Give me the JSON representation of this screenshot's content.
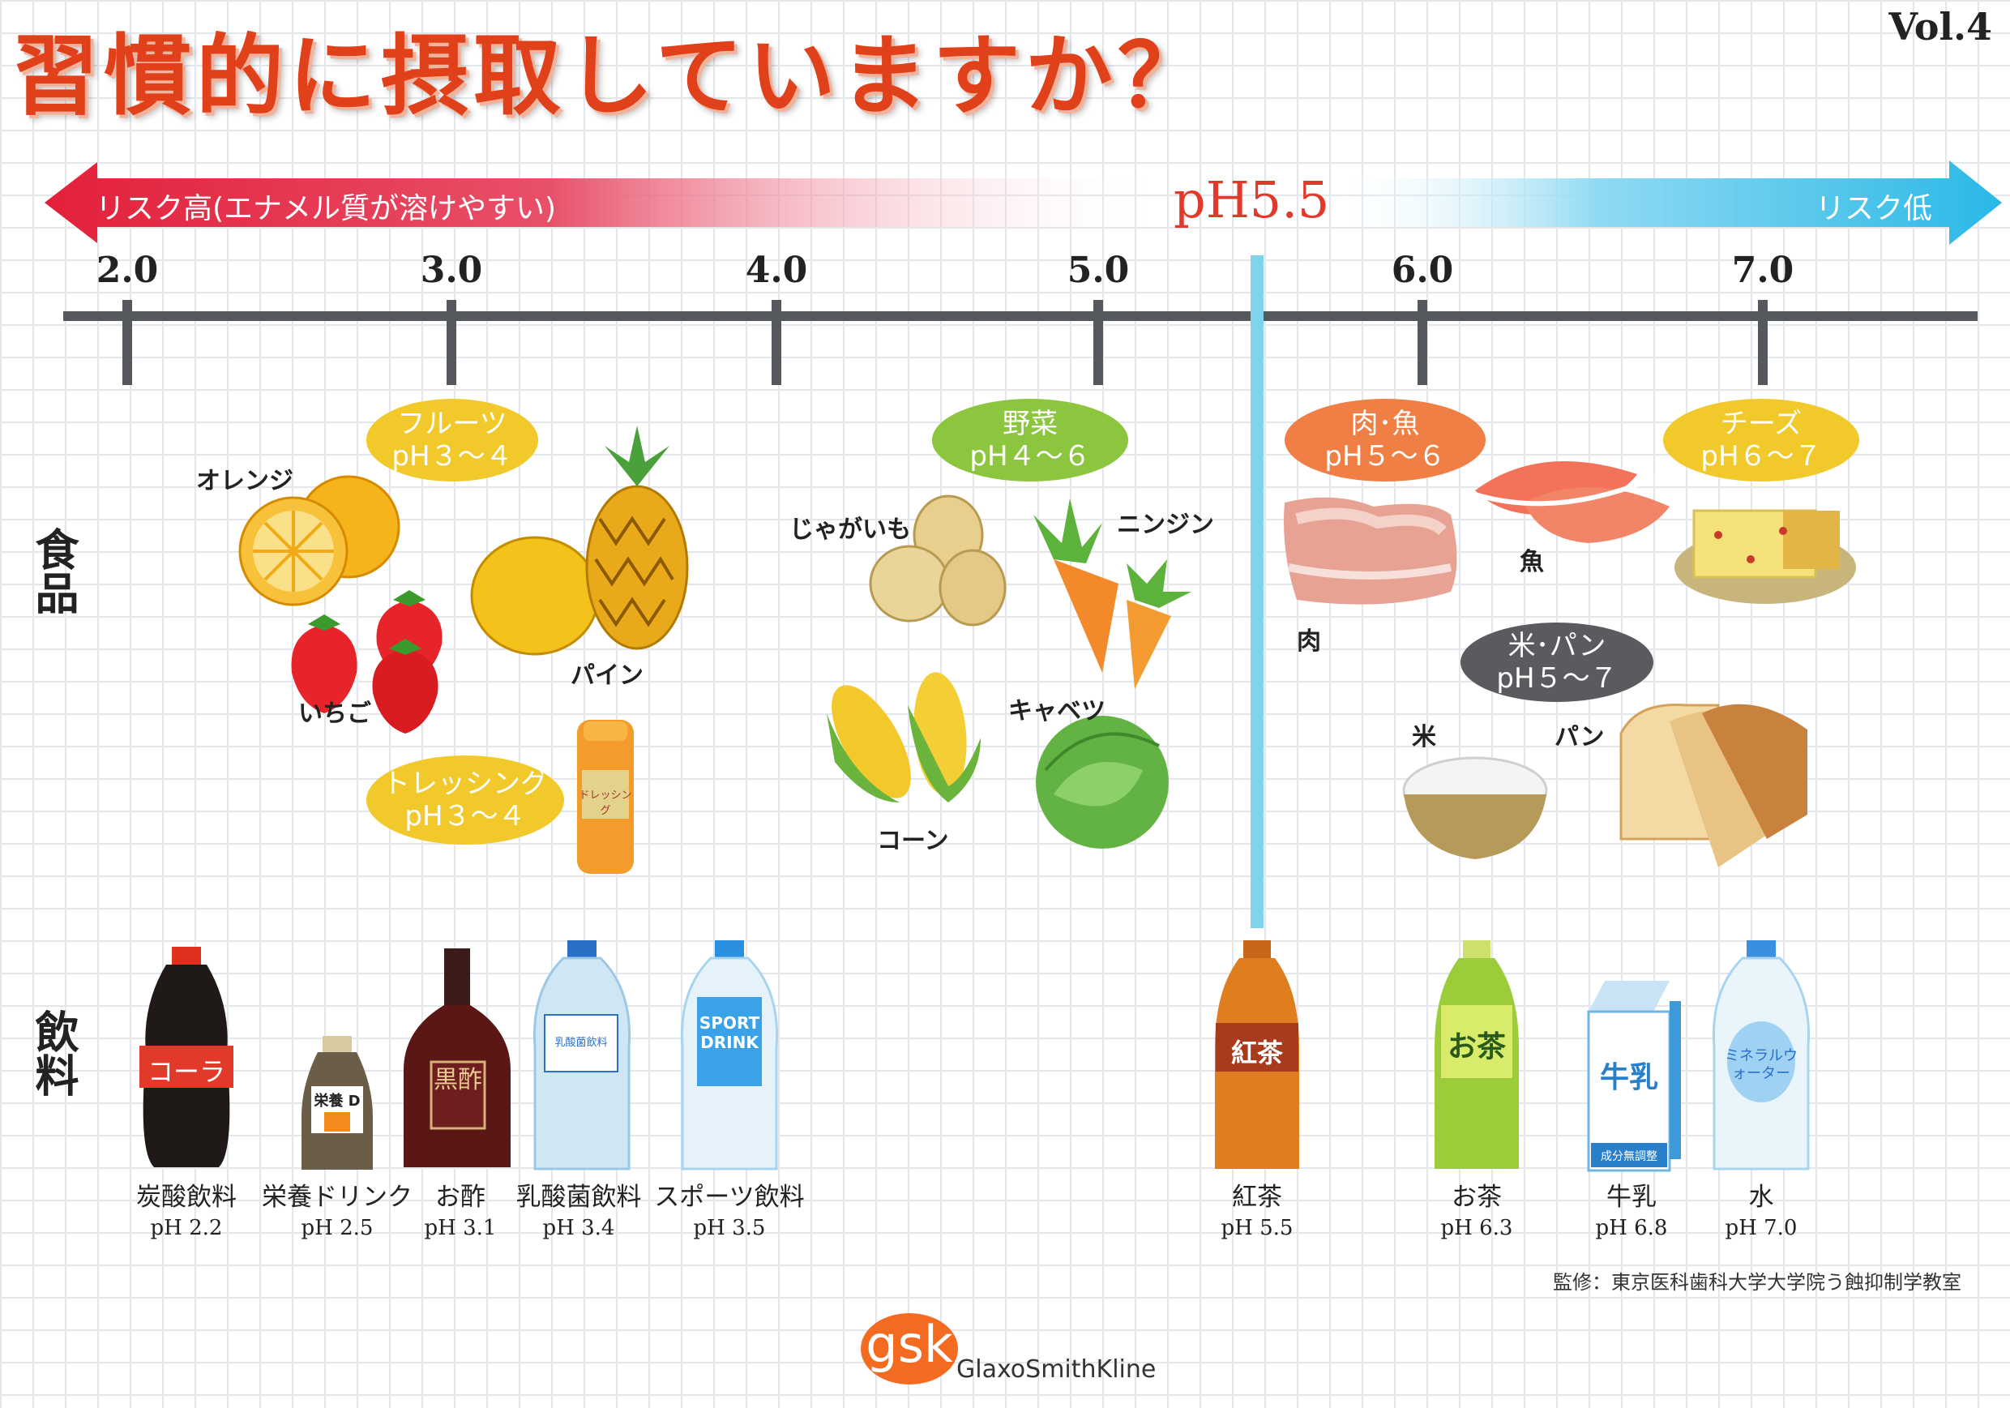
{
  "vol": "Vol.4",
  "title": "習慣的に摂取していますか？",
  "arrow": {
    "left_label": "リスク高(エナメル質が溶けやすい)",
    "center_label": "pH5.5",
    "right_label": "リスク低",
    "left_color": "#e3203a",
    "right_color": "#2ab8e6"
  },
  "scale": {
    "ticks": [
      "2.0",
      "3.0",
      "4.0",
      "5.0",
      "6.0",
      "7.0"
    ],
    "threshold_color": "#7fd3ea"
  },
  "rows": {
    "food": "食品",
    "drink": "飲料"
  },
  "food_groups": [
    {
      "name": "フルーツ",
      "ph": "pH３〜４",
      "color": "#f2c92b"
    },
    {
      "name": "トレッシング",
      "ph": "pH３〜４",
      "color": "#f2c92b"
    },
    {
      "name": "野菜",
      "ph": "pH４〜６",
      "color": "#8cc63f"
    },
    {
      "name": "肉･魚",
      "ph": "pH５〜６",
      "color": "#ef7f45"
    },
    {
      "name": "チーズ",
      "ph": "pH６〜７",
      "color": "#f2c92b"
    },
    {
      "name": "米･パン",
      "ph": "pH５〜７",
      "color": "#595b5e"
    }
  ],
  "food_labels": {
    "orange": "オレンジ",
    "strawberry": "いちご",
    "pineapple": "パイン",
    "potato": "じゃがいも",
    "carrot": "ニンジン",
    "corn": "コーン",
    "cabbage": "キャベツ",
    "meat": "肉",
    "fish": "魚",
    "rice": "米",
    "bread": "パン"
  },
  "dressing_bottle_label": "ドレッシング",
  "drinks": [
    {
      "name": "炭酸飲料",
      "ph": "pH 2.2",
      "bottle_text": "コーラ"
    },
    {
      "name": "栄養ドリンク",
      "ph": "pH 2.5",
      "bottle_text": "栄養 D"
    },
    {
      "name": "お酢",
      "ph": "pH 3.1",
      "bottle_text": "黒酢"
    },
    {
      "name": "乳酸菌飲料",
      "ph": "pH 3.4",
      "bottle_text": "乳酸菌飲料"
    },
    {
      "name": "スポーツ飲料",
      "ph": "pH 3.5",
      "bottle_text": "SPORT DRINK"
    },
    {
      "name": "紅茶",
      "ph": "pH 5.5",
      "bottle_text": "紅茶"
    },
    {
      "name": "お茶",
      "ph": "pH 6.3",
      "bottle_text": "お茶"
    },
    {
      "name": "牛乳",
      "ph": "pH 6.8",
      "bottle_text": "牛乳",
      "bottle_subtext": "成分無調整"
    },
    {
      "name": "水",
      "ph": "pH 7.0",
      "bottle_text": "ミネラルウォーター"
    }
  ],
  "credit": "監修：東京医科歯科大学大学院う蝕抑制学教室",
  "logo": {
    "mark": "gsk",
    "name": "GlaxoSmithKline",
    "color": "#f26b21"
  }
}
